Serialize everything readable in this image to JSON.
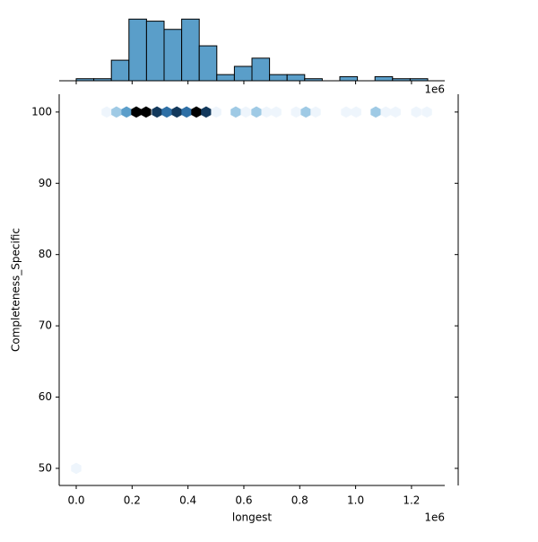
{
  "chart_data": {
    "type": "hexbin",
    "x_label": "longest",
    "y_label": "Completeness_Specific",
    "offset_label": "1e6",
    "x": [
      0.109,
      0.144,
      0.18,
      0.215,
      0.25,
      0.289,
      0.324,
      0.36,
      0.395,
      0.43,
      0.465,
      0.501,
      0.571,
      0.607,
      0.645,
      0.681,
      0.716,
      0.787,
      0.822,
      0.857,
      0.966,
      1.002,
      1.072,
      1.108,
      1.143,
      1.217,
      1.255,
      0.0
    ],
    "y": [
      100,
      100,
      100,
      100,
      100,
      100,
      100,
      100,
      100,
      100,
      100,
      100,
      100,
      100,
      100,
      100,
      100,
      100,
      100,
      100,
      100,
      100,
      100,
      100,
      100,
      100,
      100,
      50
    ],
    "values": [
      1,
      2,
      3,
      6,
      6,
      5,
      4,
      5,
      4,
      6,
      5,
      1,
      2,
      1,
      2,
      1,
      1,
      1,
      2,
      1,
      1,
      1,
      2,
      1,
      1,
      1,
      1,
      1
    ],
    "cmap": [
      "#eef5fc",
      "#6aaed6",
      "#1f5f99",
      "#000000"
    ],
    "xlim": [
      -0.061,
      1.319
    ],
    "ylim": [
      47.6,
      102.5
    ],
    "xticks": [
      {
        "value": 0,
        "label": "0.0"
      },
      0.2,
      0.4,
      0.6,
      0.8,
      {
        "value": 1,
        "label": "1.0"
      },
      1.2
    ],
    "yticks": [
      50,
      60,
      70,
      80,
      90,
      100
    ],
    "histogram": {
      "type": "histogram",
      "color": "#5a9ec9",
      "bins": [
        0,
        0.0629,
        0.1258,
        0.1887,
        0.2516,
        0.3145,
        0.3774,
        0.4403,
        0.5032,
        0.5661,
        0.629,
        0.6919,
        0.7548,
        0.8177,
        0.8806,
        0.9435,
        1.0064,
        1.0693,
        1.1322,
        1.1951,
        1.258
      ],
      "values": [
        1,
        1,
        10,
        30,
        29,
        25,
        30,
        17,
        3,
        7,
        11,
        3,
        3,
        1,
        0,
        2,
        0,
        2,
        1,
        1
      ],
      "ylim": [
        0,
        31
      ]
    }
  }
}
